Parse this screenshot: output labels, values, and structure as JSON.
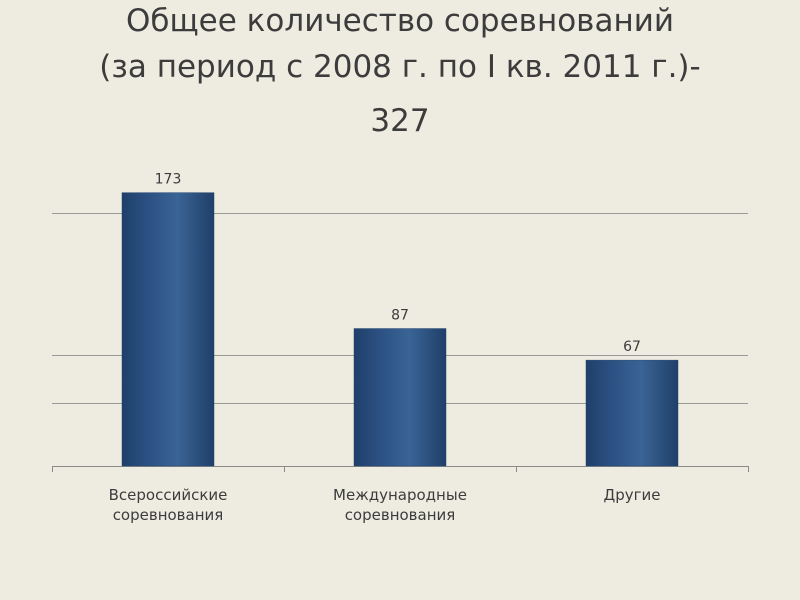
{
  "title_lines": [
    "Общее количество соревнований",
    "(за период с 2008 г. по I кв. 2011 г.)-",
    "327"
  ],
  "chart_data": {
    "type": "bar",
    "categories": [
      [
        "Всероссийские",
        "соревнования"
      ],
      [
        "Международные",
        "соревнования"
      ],
      [
        "Другие"
      ]
    ],
    "values": [
      173,
      87,
      67
    ],
    "data_labels": [
      "173",
      "87",
      "67"
    ],
    "ylim": [
      0,
      180
    ],
    "gridlines": [
      40,
      70,
      160
    ],
    "grid": true,
    "legend": "none",
    "bar_color": "#2a4f80",
    "bar_color_light": "#3a6496",
    "bar_color_dark": "#1f3f69",
    "axis_color": "#8a8a8a",
    "grid_color": "#9a9a9a",
    "text_color": "#3c3c3c"
  }
}
